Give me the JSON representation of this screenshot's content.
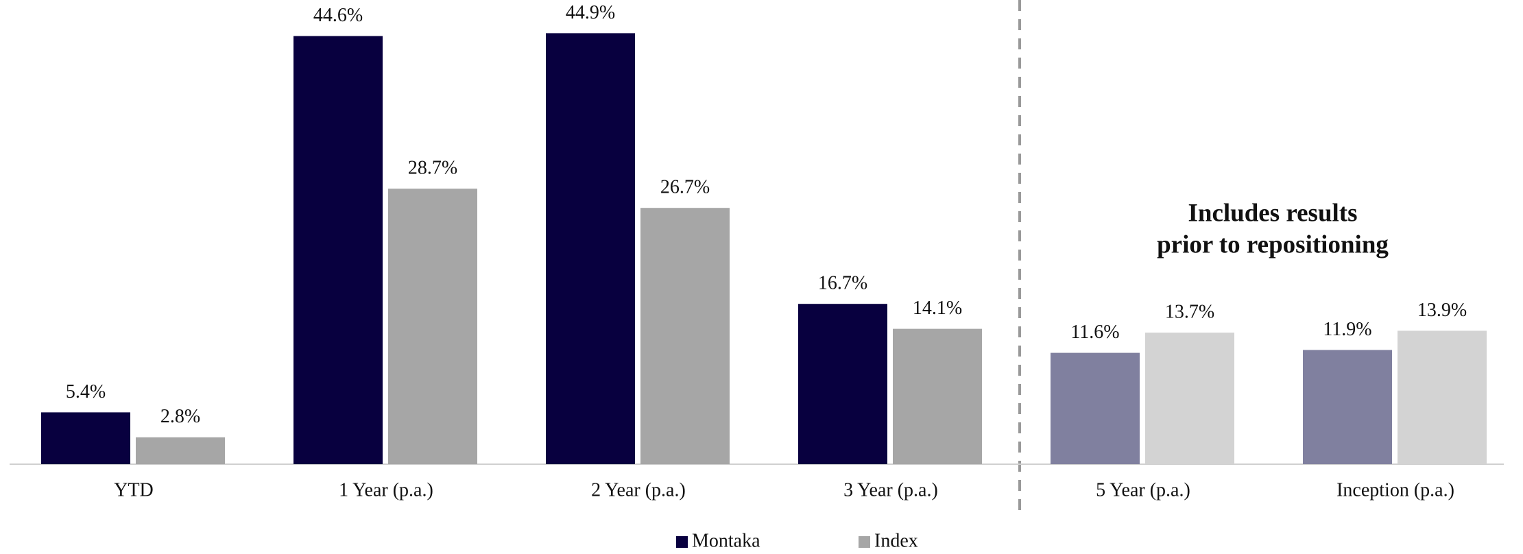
{
  "chart_data": {
    "type": "bar",
    "annotation": [
      "Includes results",
      "prior to repositioning"
    ],
    "categories": [
      "YTD",
      "1 Year (p.a.)",
      "2 Year (p.a.)",
      "3 Year (p.a.)",
      "5 Year (p.a.)",
      "Inception (p.a.)"
    ],
    "series": [
      {
        "name": "Montaka",
        "color": "#08003f",
        "colors": [
          "#08003f",
          "#08003f",
          "#08003f",
          "#08003f",
          "#80809f",
          "#80809f"
        ],
        "values": [
          5.4,
          44.6,
          44.9,
          16.7,
          11.6,
          11.9
        ],
        "value_labels": [
          "5.4%",
          "44.6%",
          "44.9%",
          "16.7%",
          "11.6%",
          "11.9%"
        ]
      },
      {
        "name": "Index",
        "color": "#a6a6a6",
        "colors": [
          "#a6a6a6",
          "#a6a6a6",
          "#a6a6a6",
          "#a6a6a6",
          "#d3d3d3",
          "#d3d3d3"
        ],
        "values": [
          2.8,
          28.7,
          26.7,
          14.1,
          13.7,
          13.9
        ],
        "value_labels": [
          "2.8%",
          "28.7%",
          "26.7%",
          "14.1%",
          "13.7%",
          "13.9%"
        ]
      }
    ],
    "ylim": [
      0,
      45
    ],
    "legend": "bottom"
  }
}
